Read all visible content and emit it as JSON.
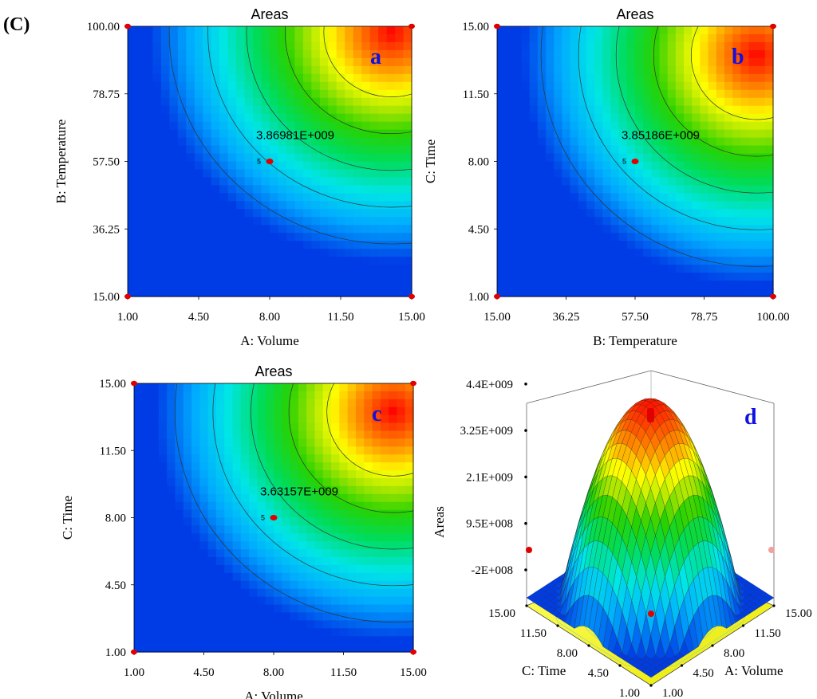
{
  "figure_label": "(C)",
  "chart_data": [
    {
      "panel": "a",
      "type": "heatmap",
      "title": "Areas",
      "xlabel": "A: Volume",
      "ylabel": "B: Temperature",
      "xlim": [
        1.0,
        15.0
      ],
      "ylim": [
        15.0,
        100.0
      ],
      "xticks": [
        "1.00",
        "4.50",
        "8.00",
        "11.50",
        "15.00"
      ],
      "yticks": [
        "15.00",
        "36.25",
        "57.50",
        "78.75",
        "100.00"
      ],
      "optimum_label": "3.86981E+009",
      "center_point": {
        "x": 8.0,
        "y": 57.5,
        "label": "5"
      },
      "peak": {
        "x": 14.0,
        "y": 98.0
      },
      "design_points": [
        {
          "x": 1.0,
          "y": 15.0
        },
        {
          "x": 15.0,
          "y": 15.0
        },
        {
          "x": 1.0,
          "y": 100.0
        },
        {
          "x": 15.0,
          "y": 100.0
        }
      ]
    },
    {
      "panel": "b",
      "type": "heatmap",
      "title": "Areas",
      "xlabel": "B: Temperature",
      "ylabel": "C: Time",
      "xlim": [
        15.0,
        100.0
      ],
      "ylim": [
        1.0,
        15.0
      ],
      "xticks": [
        "15.00",
        "36.25",
        "57.50",
        "78.75",
        "100.00"
      ],
      "yticks": [
        "1.00",
        "4.50",
        "8.00",
        "11.50",
        "15.00"
      ],
      "optimum_label": "3.85186E+009",
      "center_point": {
        "x": 57.5,
        "y": 8.0,
        "label": "5"
      },
      "peak": {
        "x": 95.0,
        "y": 13.5
      },
      "design_points": [
        {
          "x": 15.0,
          "y": 1.0
        },
        {
          "x": 100.0,
          "y": 1.0
        },
        {
          "x": 15.0,
          "y": 15.0
        },
        {
          "x": 100.0,
          "y": 15.0
        }
      ]
    },
    {
      "panel": "c",
      "type": "heatmap",
      "title": "Areas",
      "xlabel": "A: Volume",
      "ylabel": "C: Time",
      "xlim": [
        1.0,
        15.0
      ],
      "ylim": [
        1.0,
        15.0
      ],
      "xticks": [
        "1.00",
        "4.50",
        "8.00",
        "11.50",
        "15.00"
      ],
      "yticks": [
        "1.00",
        "4.50",
        "8.00",
        "11.50",
        "15.00"
      ],
      "optimum_label": "3.63157E+009",
      "center_point": {
        "x": 8.0,
        "y": 8.0,
        "label": "5"
      },
      "peak": {
        "x": 14.0,
        "y": 13.5
      },
      "design_points": [
        {
          "x": 1.0,
          "y": 1.0
        },
        {
          "x": 15.0,
          "y": 1.0
        },
        {
          "x": 1.0,
          "y": 15.0
        },
        {
          "x": 15.0,
          "y": 15.0
        }
      ]
    },
    {
      "panel": "d",
      "type": "surface",
      "zlabel": "Areas",
      "xlabel": "A: Volume",
      "ylabel": "C: Time",
      "xticks": [
        "1.00",
        "4.50",
        "8.00",
        "11.50",
        "15.00"
      ],
      "yticks": [
        "1.00",
        "4.50",
        "8.00",
        "11.50",
        "15.00"
      ],
      "zticks": [
        "-2E+008",
        "9.5E+008",
        "2.1E+009",
        "3.25E+009",
        "4.4E+009"
      ],
      "zlim": [
        -200000000,
        4400000000
      ]
    }
  ]
}
